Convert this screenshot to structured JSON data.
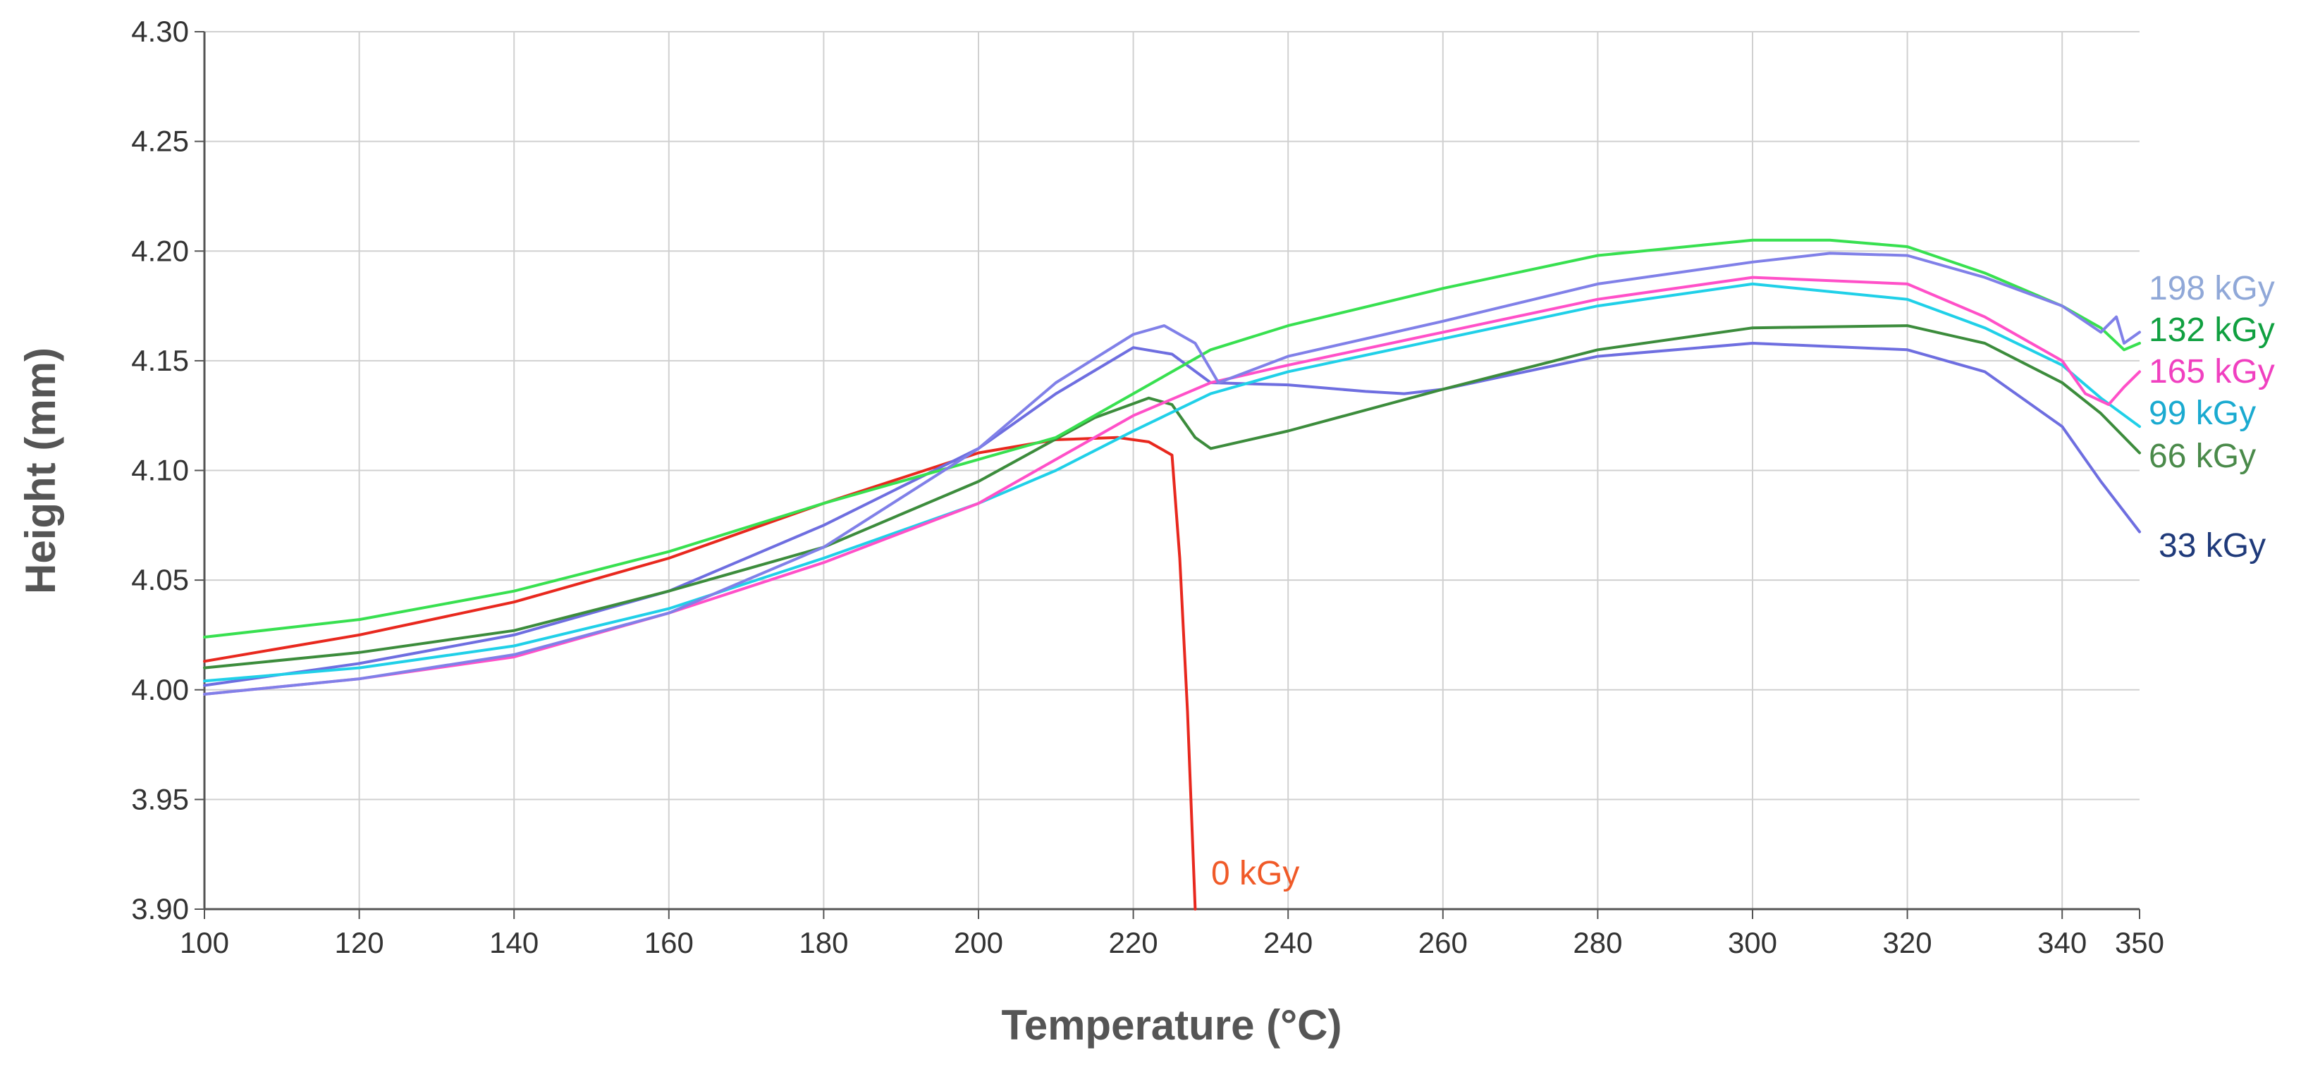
{
  "chart_data": {
    "type": "line",
    "title": "",
    "xlabel": "Temperature (°C)",
    "ylabel": "Height (mm)",
    "xlim": [
      100,
      350
    ],
    "ylim": [
      3.9,
      4.3
    ],
    "x_ticks": [
      100,
      120,
      140,
      160,
      180,
      200,
      220,
      240,
      260,
      280,
      300,
      320,
      340,
      350
    ],
    "x_tick_labels": [
      "100",
      "120",
      "140",
      "160",
      "180",
      "200",
      "220",
      "240",
      "260",
      "280",
      "300",
      "320",
      "340",
      "350"
    ],
    "y_ticks": [
      3.9,
      3.95,
      4.0,
      4.05,
      4.1,
      4.15,
      4.2,
      4.25,
      4.3
    ],
    "y_tick_labels": [
      "3.90",
      "3.95",
      "4.00",
      "4.05",
      "4.10",
      "4.15",
      "4.20",
      "4.25",
      "4.30"
    ],
    "grid": true,
    "legend": "inline labels at right end of each curve",
    "series": [
      {
        "name": "0 kGy",
        "color": "#e8281e",
        "label_color": "#f05a28",
        "x": [
          100,
          120,
          140,
          160,
          180,
          200,
          210,
          218,
          222,
          225,
          226,
          227,
          228
        ],
        "y": [
          4.013,
          4.025,
          4.04,
          4.06,
          4.085,
          4.108,
          4.114,
          4.115,
          4.113,
          4.107,
          4.06,
          3.99,
          3.9
        ]
      },
      {
        "name": "33 kGy",
        "color": "#6e6ee0",
        "label_color": "#1f3a7a",
        "x": [
          100,
          120,
          140,
          160,
          180,
          200,
          210,
          220,
          225,
          230,
          240,
          250,
          255,
          260,
          280,
          300,
          320,
          330,
          340,
          345,
          350
        ],
        "y": [
          4.002,
          4.012,
          4.025,
          4.045,
          4.075,
          4.11,
          4.135,
          4.156,
          4.153,
          4.14,
          4.139,
          4.136,
          4.135,
          4.137,
          4.152,
          4.158,
          4.155,
          4.145,
          4.12,
          4.095,
          4.072
        ]
      },
      {
        "name": "66 kGy",
        "color": "#3c8c3c",
        "label_color": "#4a8a4a",
        "x": [
          100,
          120,
          140,
          160,
          180,
          200,
          215,
          222,
          225,
          228,
          230,
          240,
          260,
          280,
          300,
          320,
          330,
          340,
          345,
          350
        ],
        "y": [
          4.01,
          4.017,
          4.027,
          4.045,
          4.065,
          4.095,
          4.124,
          4.133,
          4.13,
          4.115,
          4.11,
          4.118,
          4.137,
          4.155,
          4.165,
          4.166,
          4.158,
          4.14,
          4.126,
          4.108
        ]
      },
      {
        "name": "99 kGy",
        "color": "#20d0e8",
        "label_color": "#1aaad0",
        "x": [
          100,
          120,
          140,
          160,
          180,
          200,
          210,
          220,
          230,
          240,
          260,
          280,
          300,
          320,
          330,
          340,
          345,
          350
        ],
        "y": [
          4.004,
          4.01,
          4.02,
          4.037,
          4.06,
          4.085,
          4.1,
          4.118,
          4.135,
          4.145,
          4.16,
          4.175,
          4.185,
          4.178,
          4.165,
          4.148,
          4.133,
          4.12
        ]
      },
      {
        "name": "132 kGy",
        "color": "#38e050",
        "label_color": "#10a040",
        "x": [
          100,
          120,
          140,
          160,
          180,
          200,
          210,
          220,
          230,
          240,
          260,
          280,
          300,
          310,
          320,
          330,
          340,
          345,
          348,
          350
        ],
        "y": [
          4.024,
          4.032,
          4.045,
          4.063,
          4.085,
          4.105,
          4.115,
          4.135,
          4.155,
          4.166,
          4.183,
          4.198,
          4.205,
          4.205,
          4.202,
          4.19,
          4.175,
          4.165,
          4.155,
          4.158
        ]
      },
      {
        "name": "165 kGy",
        "color": "#ff50c8",
        "label_color": "#f040c0",
        "x": [
          100,
          120,
          140,
          160,
          180,
          200,
          210,
          220,
          230,
          240,
          260,
          280,
          300,
          320,
          330,
          340,
          343,
          346,
          348,
          350
        ],
        "y": [
          3.998,
          4.005,
          4.015,
          4.035,
          4.058,
          4.085,
          4.105,
          4.125,
          4.14,
          4.148,
          4.163,
          4.178,
          4.188,
          4.185,
          4.17,
          4.15,
          4.135,
          4.13,
          4.138,
          4.145
        ]
      },
      {
        "name": "198 kGy",
        "color": "#8080e8",
        "label_color": "#90a8d8",
        "x": [
          100,
          120,
          140,
          160,
          180,
          200,
          210,
          220,
          224,
          228,
          231,
          240,
          260,
          280,
          300,
          310,
          320,
          330,
          340,
          345,
          347,
          348,
          350
        ],
        "y": [
          3.998,
          4.005,
          4.016,
          4.035,
          4.065,
          4.11,
          4.14,
          4.162,
          4.166,
          4.158,
          4.14,
          4.152,
          4.168,
          4.185,
          4.195,
          4.199,
          4.198,
          4.188,
          4.175,
          4.163,
          4.17,
          4.158,
          4.163
        ]
      }
    ]
  }
}
